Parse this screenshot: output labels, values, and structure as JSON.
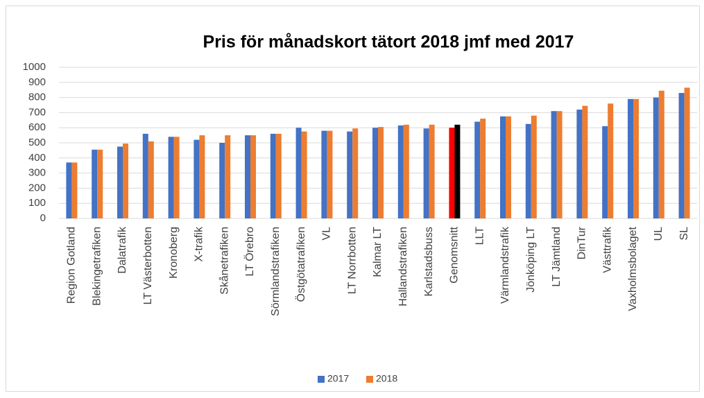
{
  "chart_data": {
    "type": "bar",
    "title": "Pris för månadskort  tätort 2018 jmf med 2017",
    "categories": [
      "Region Gotland",
      "Blekingetrafiken",
      "Dalatrafik",
      "LT Västerbotten",
      "Kronoberg",
      "X-trafik",
      "Skånetrafiken",
      "LT Örebro",
      "Sörmlandstrafiken",
      "Östgötatrafiken",
      "VL",
      "LT Norrbotten",
      "Kalmar LT",
      "Hallandstrafiken",
      "Karlstadsbuss",
      "Genomsnitt",
      "LLT",
      "Värmlandstrafik",
      "Jönköping LT",
      "LT Jämtland",
      "DinTur",
      "Västtrafik",
      "Vaxholmsbolaget",
      "UL",
      "SL"
    ],
    "series": [
      {
        "name": "2017",
        "color": "#4472c4",
        "values": [
          370,
          455,
          475,
          560,
          540,
          520,
          500,
          550,
          560,
          600,
          580,
          575,
          600,
          615,
          595,
          600,
          640,
          675,
          625,
          710,
          720,
          610,
          790,
          800,
          830
        ]
      },
      {
        "name": "2018",
        "color": "#ed7d31",
        "values": [
          370,
          455,
          495,
          510,
          540,
          550,
          550,
          550,
          560,
          575,
          580,
          595,
          605,
          620,
          620,
          620,
          660,
          675,
          680,
          710,
          745,
          760,
          790,
          845,
          865
        ]
      }
    ],
    "highlight": {
      "category": "Genomsnitt",
      "colors": [
        "#ff0000",
        "#000000"
      ]
    },
    "ylim": [
      0,
      1000
    ],
    "yticks": [
      0,
      100,
      200,
      300,
      400,
      500,
      600,
      700,
      800,
      900,
      1000
    ],
    "grid": true,
    "legend": "bottom"
  }
}
